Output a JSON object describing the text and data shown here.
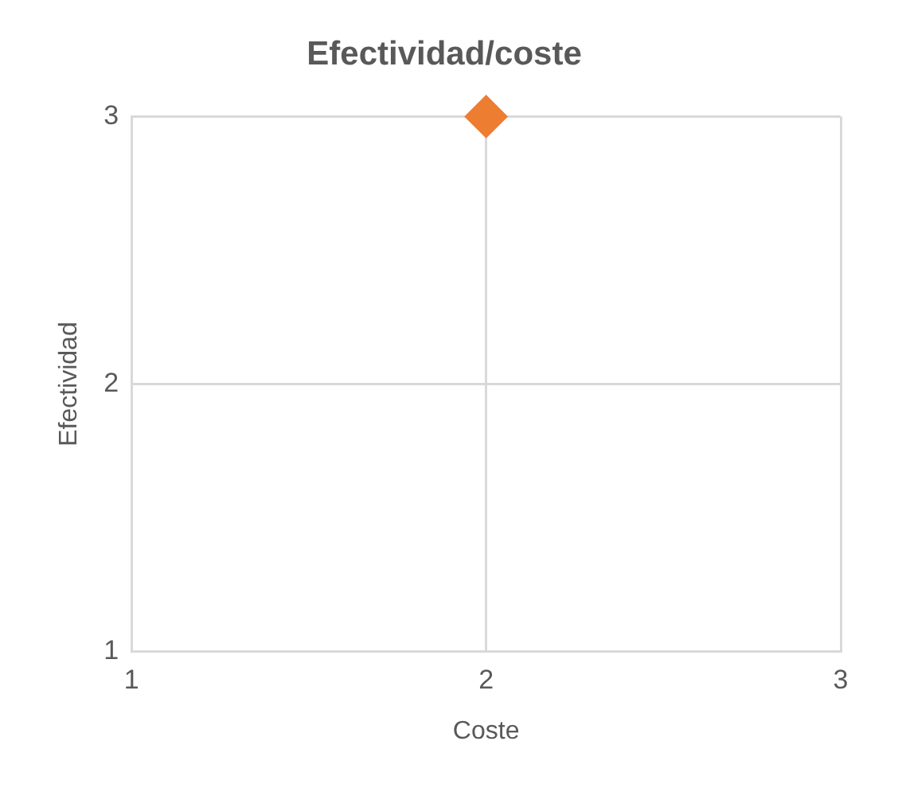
{
  "chart_data": {
    "type": "scatter",
    "title": "Efectividad/coste",
    "xlabel": "Coste",
    "ylabel": "Efectividad",
    "x": [
      2
    ],
    "series": [
      {
        "color": "#ed7d31",
        "values": [
          3
        ]
      }
    ],
    "xlim": [
      1,
      3
    ],
    "ylim": [
      1,
      3
    ],
    "xticks": [
      1,
      2,
      3
    ],
    "yticks": [
      1,
      2,
      3
    ],
    "grid": true,
    "legend": false,
    "marker": "diamond"
  }
}
